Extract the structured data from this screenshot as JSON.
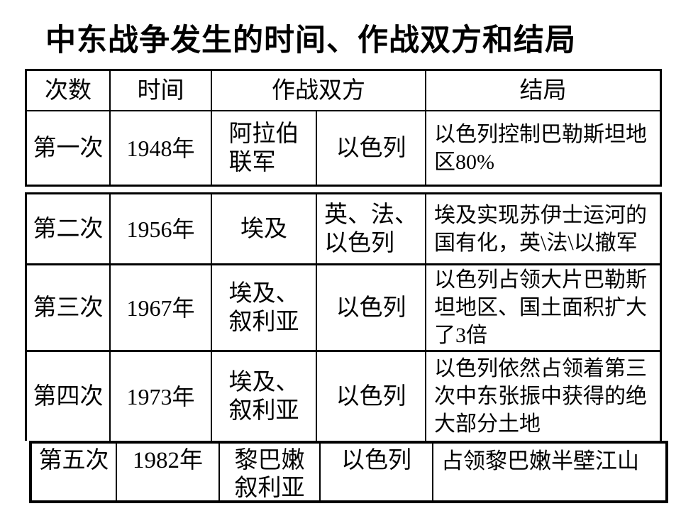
{
  "colors": {
    "background": "#ffffff",
    "text": "#000000",
    "border": "#000000"
  },
  "title": "中东战争发生的时间、作战双方和结局",
  "table": {
    "headers": {
      "ordinal": "次数",
      "time": "时间",
      "belligerents": "作战双方",
      "result": "结局"
    },
    "rows": [
      {
        "ordinal": "第一次",
        "year": "1948年",
        "side_a": "阿拉伯\n联军",
        "side_b": "以色列",
        "result": "以色列控制巴勒斯坦地\n区80%"
      },
      {
        "ordinal": "第二次",
        "year": "1956年",
        "side_a": "埃及",
        "side_b": "英、法、\n以色列",
        "result": "埃及实现苏伊士运河的\n国有化，英\\法\\以撤军"
      },
      {
        "ordinal": "第三次",
        "year": "1967年",
        "side_a": "埃及、\n叙利亚",
        "side_b": "以色列",
        "result": "以色列占领大片巴勒斯\n坦地区、国土面积扩大\n了3倍"
      },
      {
        "ordinal": "第四次",
        "year": "1973年",
        "side_a": "埃及、\n叙利亚",
        "side_b": "以色列",
        "result": "以色列依然占领着第三\n次中东张振中获得的绝\n大部分土地"
      },
      {
        "ordinal": "第五次",
        "year": "1982年",
        "side_a": "黎巴嫩\n叙利亚",
        "side_b": "以色列",
        "result": "占领黎巴嫩半壁江山"
      }
    ]
  }
}
